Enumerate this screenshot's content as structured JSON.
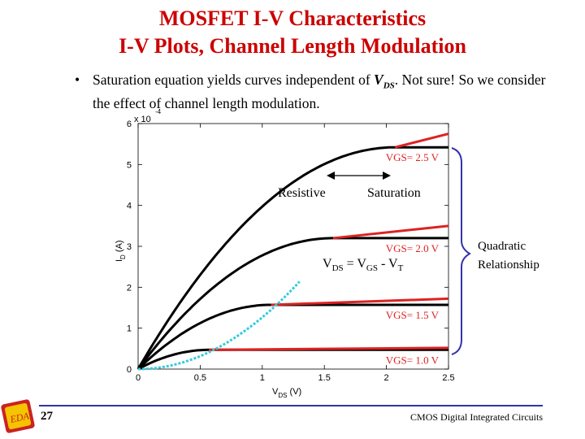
{
  "slide": {
    "title_line1": "MOSFET I-V Characteristics",
    "title_line2": "I-V Plots, Channel Length Modulation",
    "bullet_char": "•",
    "bullet_text_1": "Saturation equation yields curves independent of ",
    "bullet_text_vds_v": "V",
    "bullet_text_vds_sub": "DS",
    "bullet_text_2": ". Not sure! So we consider the effect of channel length modulation.",
    "page_number": "27",
    "footer_text": "CMOS Digital Integrated Circuits",
    "logo_text": "EDA"
  },
  "annotations": {
    "resistive": "Resistive",
    "saturation": "Saturation",
    "vds_eq": {
      "v1": "V",
      "s1": "DS",
      "mid": " = V",
      "s2": "GS",
      "tail": " - V",
      "s3": "T"
    },
    "quadratic_line1": "Quadratic",
    "quadratic_line2": "Relationship"
  },
  "chart_data": {
    "type": "line",
    "title": "",
    "xlabel": "V_DS (V)",
    "xlabel_main": "V",
    "xlabel_sub": "DS",
    "xlabel_unit": " (V)",
    "ylabel": "I_D (A)",
    "ylabel_main": "I",
    "ylabel_sub": "D",
    "ylabel_unit": " (A)",
    "y_multiplier": "x 10",
    "y_multiplier_exp": "-4",
    "xlim": [
      0,
      2.5
    ],
    "ylim": [
      0,
      6
    ],
    "xticks": [
      "0",
      "0.5",
      "1",
      "1.5",
      "2",
      "2.5"
    ],
    "xtick_values": [
      0,
      0.5,
      1,
      1.5,
      2,
      2.5
    ],
    "yticks": [
      "0",
      "1",
      "2",
      "3",
      "4",
      "5",
      "6"
    ],
    "ytick_values": [
      0,
      1,
      2,
      3,
      4,
      5,
      6
    ],
    "grid": false,
    "series": [
      {
        "name": "VGS= 2.5 V",
        "vgs": 2.5,
        "vt": 0.43,
        "isat": 5.42,
        "clm_end": 5.75
      },
      {
        "name": "VGS= 2.0 V",
        "vgs": 2.0,
        "vt": 0.43,
        "isat": 3.2,
        "clm_end": 3.5
      },
      {
        "name": "VGS= 1.5 V",
        "vgs": 1.5,
        "vt": 0.43,
        "isat": 1.57,
        "clm_end": 1.72
      },
      {
        "name": "VGS= 1.0 V",
        "vgs": 1.0,
        "vt": 0.43,
        "isat": 0.47,
        "clm_end": 0.52
      }
    ],
    "boundary": {
      "name": "V_DS = V_GS - V_T",
      "k": 1.0,
      "color": "#33ccdd"
    },
    "colors": {
      "curve": "#000000",
      "clm": "#dd2222",
      "boundary": "#33ccdd",
      "bracket": "#3333aa"
    }
  }
}
